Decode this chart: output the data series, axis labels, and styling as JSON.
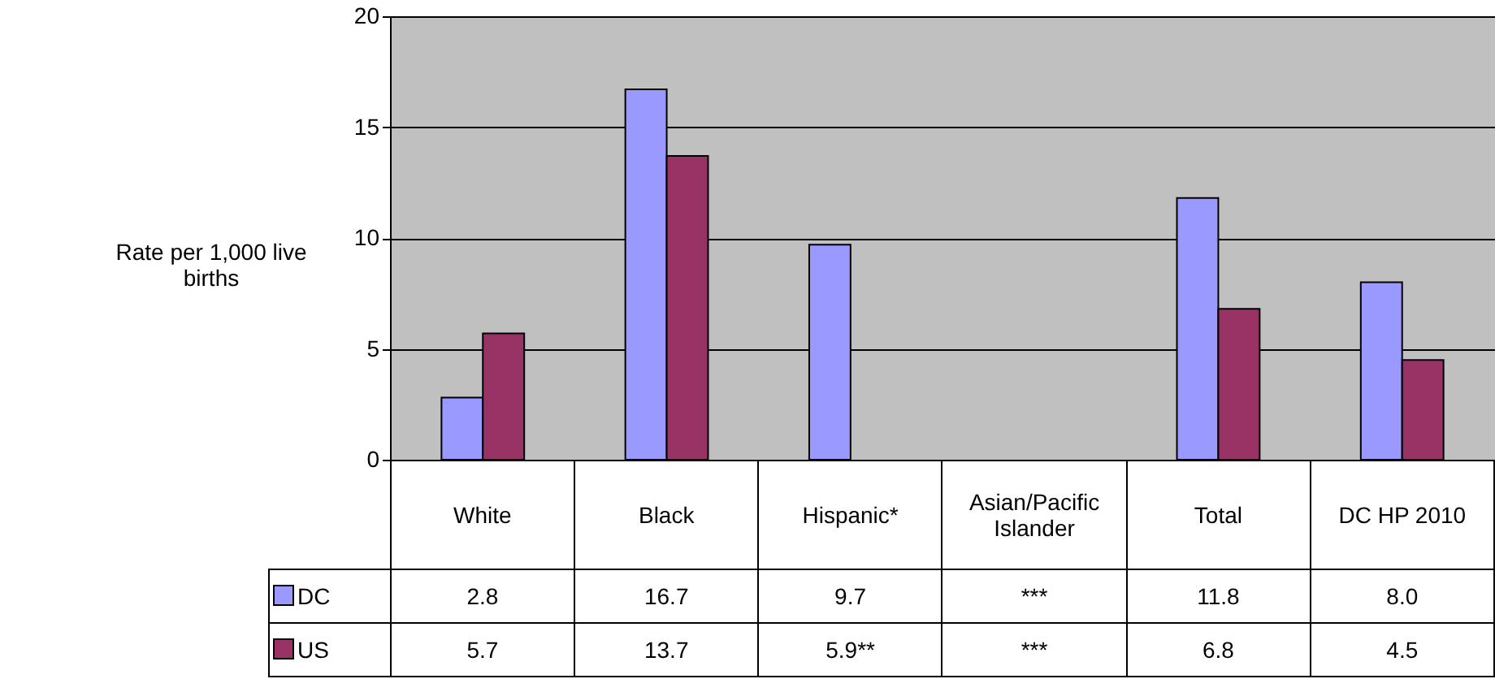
{
  "chart_data": {
    "type": "bar",
    "ylabel": "Rate per 1,000 live births",
    "categories": [
      "White",
      "Black",
      "Hispanic*",
      "Asian/Pacific Islander",
      "Total",
      "DC HP 2010"
    ],
    "series": [
      {
        "name": "DC",
        "color": "#9999ff",
        "values": [
          2.8,
          16.7,
          9.7,
          null,
          11.8,
          8.0
        ],
        "value_labels": [
          "2.8",
          "16.7",
          "9.7",
          "***",
          "11.8",
          "8.0"
        ]
      },
      {
        "name": "US",
        "color": "#993366",
        "values": [
          5.7,
          13.7,
          null,
          null,
          6.8,
          4.5
        ],
        "value_labels": [
          "5.7",
          "13.7",
          "5.9**",
          "***",
          "6.8",
          "4.5"
        ]
      }
    ],
    "ylim": [
      0,
      20
    ],
    "yticks": [
      0,
      5,
      10,
      15,
      20
    ],
    "grid": "y",
    "legend": "bottom"
  }
}
